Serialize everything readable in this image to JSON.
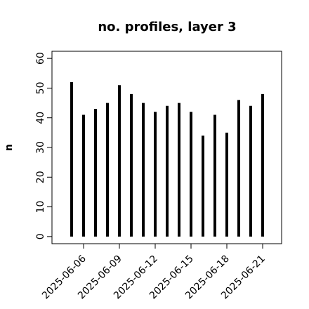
{
  "chart_data": {
    "type": "bar",
    "title": "no. profiles, layer 3",
    "y_label": "n",
    "x": [
      "2025-06-05",
      "2025-06-06",
      "2025-06-07",
      "2025-06-08",
      "2025-06-09",
      "2025-06-10",
      "2025-06-11",
      "2025-06-12",
      "2025-06-13",
      "2025-06-14",
      "2025-06-15",
      "2025-06-16",
      "2025-06-17",
      "2025-06-18",
      "2025-06-19",
      "2025-06-20",
      "2025-06-21"
    ],
    "values": [
      52,
      41,
      43,
      45,
      51,
      48,
      45,
      42,
      44,
      45,
      42,
      34,
      41,
      35,
      46,
      44,
      48
    ],
    "color": "#000000",
    "xlim": [
      "2025-06-04",
      "2025-06-22"
    ],
    "xticks": [
      "2025-06-06",
      "2025-06-09",
      "2025-06-12",
      "2025-06-15",
      "2025-06-18",
      "2025-06-21"
    ],
    "xtick_colors": [
      "#000000",
      "#000000",
      "#228b22",
      "#000000",
      "#000000",
      "#000000"
    ],
    "ylim": [
      -2.4,
      62.4
    ],
    "yticks": [
      0,
      10,
      20,
      30,
      40,
      50,
      60
    ]
  }
}
